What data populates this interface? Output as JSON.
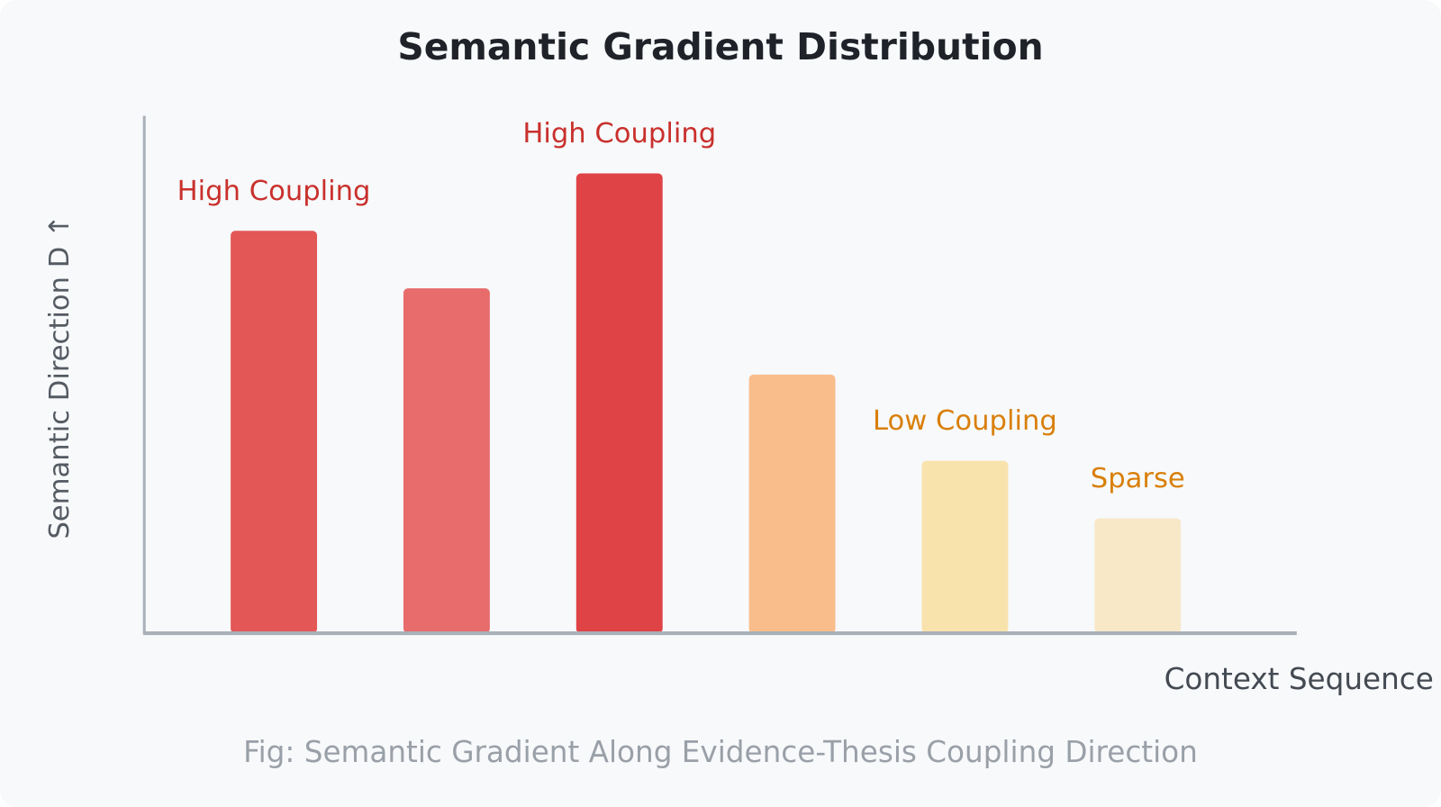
{
  "chart_data": {
    "type": "bar",
    "title": "Semantic Gradient Distribution",
    "x_label": "Context Sequence",
    "y_label": "Semantic Direction D ↑",
    "caption": "Fig: Semantic Gradient Along Evidence-Thesis Coupling Direction",
    "categories": [
      null,
      null,
      null,
      null,
      null,
      null
    ],
    "values": [
      7,
      6,
      8,
      4.5,
      3,
      2
    ],
    "colors": [
      "#e35757",
      "#e86c6c",
      "#e04346",
      "#f9bd8b",
      "#f9e3ad",
      "#f8e8c8"
    ],
    "bar_labels": [
      "High Coupling",
      null,
      "High Coupling",
      null,
      "Low Coupling",
      "Sparse"
    ],
    "bar_label_colors": [
      "#c9302c",
      null,
      "#c9302c",
      null,
      "#d97f0a",
      "#d97f0a"
    ],
    "ylim": [
      0,
      9
    ]
  }
}
